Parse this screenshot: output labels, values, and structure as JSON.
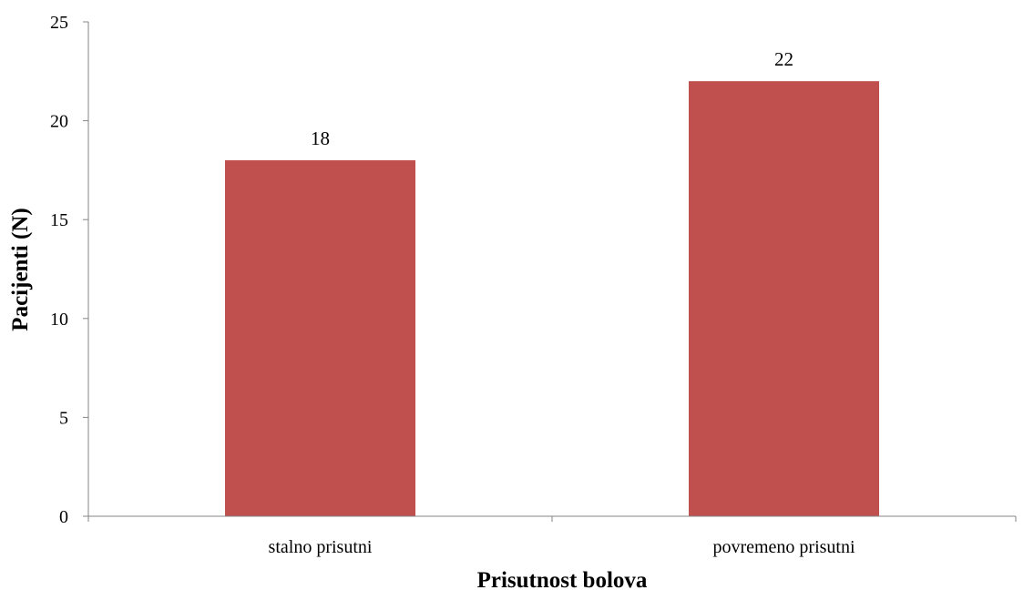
{
  "chart_data": {
    "type": "bar",
    "categories": [
      "stalno prisutni",
      "povremeno prisutni"
    ],
    "values": [
      18,
      22
    ],
    "data_labels": [
      "18",
      "22"
    ],
    "title": "",
    "xlabel": "Prisutnost bolova",
    "ylabel": "Pacijenti (N)",
    "ylim": [
      0,
      25
    ],
    "yticks": [
      "0",
      "5",
      "10",
      "15",
      "20",
      "25"
    ],
    "grid": false,
    "legend": "none",
    "bar_color": "#c0504d",
    "axis_color": "#868686"
  }
}
